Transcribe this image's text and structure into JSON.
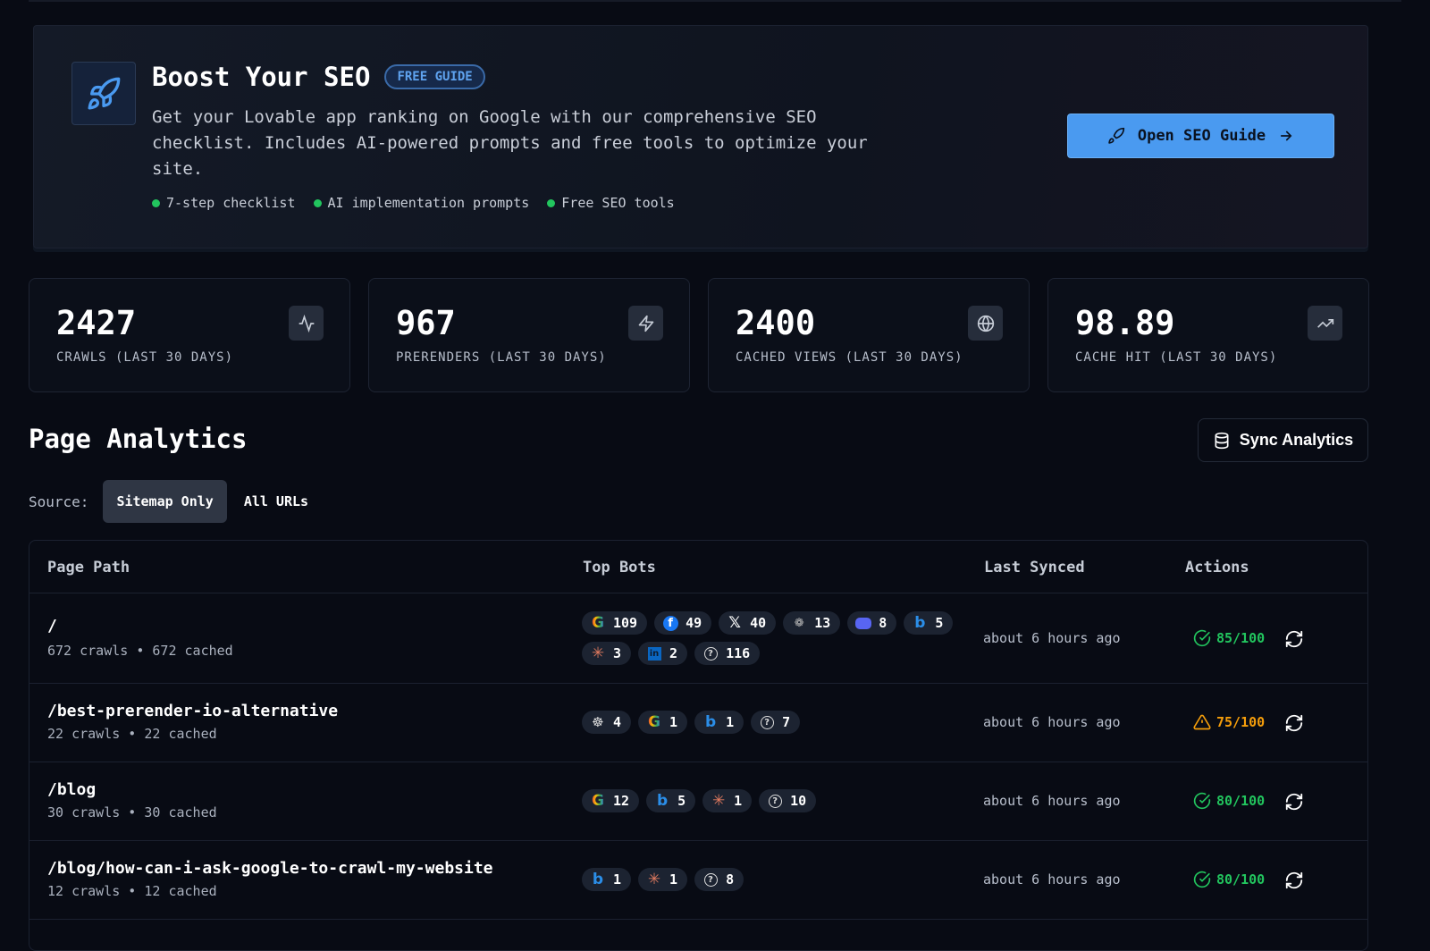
{
  "banner": {
    "title": "Boost Your SEO",
    "badge": "FREE GUIDE",
    "description": "Get your Lovable app ranking on Google with our comprehensive SEO checklist. Includes AI-powered prompts and free tools to optimize your site.",
    "features": [
      "7-step checklist",
      "AI implementation prompts",
      "Free SEO tools"
    ],
    "cta": "Open SEO Guide"
  },
  "stats": [
    {
      "value": "2427",
      "label": "CRAWLS (LAST 30 DAYS)",
      "icon": "activity-icon"
    },
    {
      "value": "967",
      "label": "PRERENDERS (LAST 30 DAYS)",
      "icon": "zap-icon"
    },
    {
      "value": "2400",
      "label": "CACHED VIEWS (LAST 30 DAYS)",
      "icon": "globe-icon"
    },
    {
      "value": "98.89",
      "label": "CACHE HIT (LAST 30 DAYS)",
      "icon": "trending-up-icon"
    }
  ],
  "analytics": {
    "title": "Page Analytics",
    "sync_label": "Sync Analytics",
    "source_label": "Source:",
    "sources": [
      "Sitemap Only",
      "All URLs"
    ],
    "active_source": "Sitemap Only"
  },
  "table": {
    "headers": [
      "Page Path",
      "Top Bots",
      "Last Synced",
      "Actions"
    ],
    "rows": [
      {
        "path": "/",
        "stats": "672 crawls • 672 cached",
        "synced": "about 6 hours ago",
        "score": "85/100",
        "status": "good",
        "bots": [
          [
            "google",
            "109"
          ],
          [
            "facebook",
            "49"
          ],
          [
            "x",
            "40"
          ],
          [
            "openai",
            "13"
          ],
          [
            "discord",
            "8"
          ],
          [
            "bing",
            "5"
          ],
          [
            "claude",
            "3"
          ],
          [
            "linkedin",
            "2"
          ],
          [
            "unknown",
            "116"
          ]
        ]
      },
      {
        "path": "/best-prerender-io-alternative",
        "stats": "22 crawls • 22 cached",
        "synced": "about 6 hours ago",
        "score": "75/100",
        "status": "warn",
        "bots": [
          [
            "spider",
            "4"
          ],
          [
            "google",
            "1"
          ],
          [
            "bing",
            "1"
          ],
          [
            "unknown",
            "7"
          ]
        ]
      },
      {
        "path": "/blog",
        "stats": "30 crawls • 30 cached",
        "synced": "about 6 hours ago",
        "score": "80/100",
        "status": "good",
        "bots": [
          [
            "google",
            "12"
          ],
          [
            "bing",
            "5"
          ],
          [
            "claude",
            "1"
          ],
          [
            "unknown",
            "10"
          ]
        ]
      },
      {
        "path": "/blog/how-can-i-ask-google-to-crawl-my-website",
        "stats": "12 crawls • 12 cached",
        "synced": "about 6 hours ago",
        "score": "80/100",
        "status": "good",
        "bots": [
          [
            "bing",
            "1"
          ],
          [
            "claude",
            "1"
          ],
          [
            "unknown",
            "8"
          ]
        ]
      }
    ]
  },
  "colors": {
    "good": "#22c55e",
    "warn": "#f59e0b",
    "accent": "#4a9af0"
  }
}
